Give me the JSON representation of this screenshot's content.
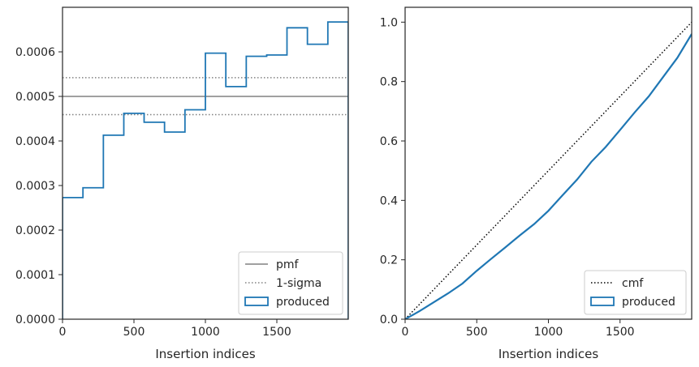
{
  "chart_data": [
    {
      "type": "line",
      "xlabel": "Insertion indices",
      "ylabel": "",
      "xlim": [
        0,
        2000
      ],
      "ylim": [
        0,
        0.0007
      ],
      "x_ticks": [
        0,
        500,
        1000,
        1500
      ],
      "x_tick_labels": [
        "0",
        "500",
        "1000",
        "1500"
      ],
      "y_ticks": [
        0,
        0.0001,
        0.0002,
        0.0003,
        0.0004,
        0.0005,
        0.0006
      ],
      "y_tick_labels": [
        "0.0000",
        "0.0001",
        "0.0002",
        "0.0003",
        "0.0004",
        "0.0005",
        "0.0006"
      ],
      "pmf": 0.0005,
      "sigma_band": [
        0.000459,
        0.000542
      ],
      "histogram": {
        "name": "produced",
        "bin_edges": [
          0,
          143,
          286,
          429,
          571,
          714,
          857,
          1000,
          1143,
          1286,
          1429,
          1571,
          1714,
          1857,
          2000
        ],
        "values": [
          0.000273,
          0.000295,
          0.000413,
          0.000462,
          0.000442,
          0.00042,
          0.00047,
          0.000597,
          0.000522,
          0.00059,
          0.000593,
          0.000654,
          0.000617,
          0.000667
        ]
      },
      "legend": {
        "placement": "lower right",
        "entries": [
          {
            "label": "pmf",
            "style": "solid-gray"
          },
          {
            "label": "1-sigma",
            "style": "dotted-gray"
          },
          {
            "label": "produced",
            "style": "box-blue"
          }
        ]
      },
      "colors": {
        "pmf": "#808080",
        "produced": "#1f77b4"
      }
    },
    {
      "type": "line",
      "xlabel": "Insertion indices",
      "ylabel": "",
      "xlim": [
        0,
        2000
      ],
      "ylim": [
        0,
        1.05
      ],
      "x_ticks": [
        0,
        500,
        1000,
        1500
      ],
      "x_tick_labels": [
        "0",
        "500",
        "1000",
        "1500"
      ],
      "y_ticks": [
        0,
        0.2,
        0.4,
        0.6,
        0.8,
        1.0
      ],
      "y_tick_labels": [
        "0.0",
        "0.2",
        "0.4",
        "0.6",
        "0.8",
        "1.0"
      ],
      "series": [
        {
          "name": "cmf",
          "style": "dotted-black",
          "x": [
            0,
            2000
          ],
          "y": [
            0,
            1.0
          ]
        },
        {
          "name": "produced",
          "style": "solid-blue",
          "x": [
            0,
            100,
            200,
            300,
            400,
            500,
            600,
            700,
            800,
            900,
            1000,
            1100,
            1200,
            1300,
            1400,
            1500,
            1600,
            1700,
            1800,
            1900,
            2000
          ],
          "y": [
            0,
            0.027,
            0.057,
            0.087,
            0.12,
            0.163,
            0.203,
            0.242,
            0.282,
            0.32,
            0.365,
            0.418,
            0.47,
            0.53,
            0.58,
            0.637,
            0.695,
            0.75,
            0.815,
            0.88,
            0.96
          ]
        }
      ],
      "legend": {
        "placement": "lower right",
        "entries": [
          {
            "label": "cmf",
            "style": "dotted-black"
          },
          {
            "label": "produced",
            "style": "box-blue"
          }
        ]
      },
      "colors": {
        "cmf": "#000000",
        "produced": "#1f77b4"
      }
    }
  ]
}
